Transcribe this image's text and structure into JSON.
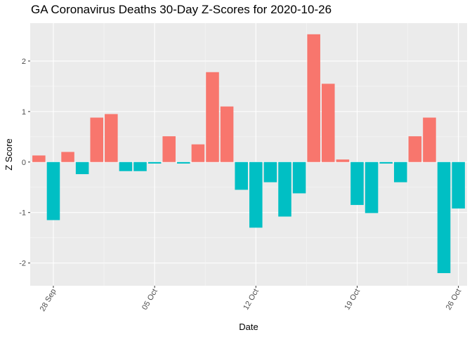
{
  "chart_data": {
    "type": "bar",
    "title": "GA Coronavirus Deaths 30-Day Z-Scores for 2020-10-26",
    "xlabel": "Date",
    "ylabel": "Z Score",
    "ylim": [
      -2.45,
      2.75
    ],
    "yticks": [
      -2,
      -1,
      0,
      1,
      2
    ],
    "ytick_labels": [
      "-2",
      "-1",
      "0",
      "1",
      "2"
    ],
    "x_dates": [
      "2020-09-27",
      "2020-09-28",
      "2020-09-29",
      "2020-09-30",
      "2020-10-01",
      "2020-10-02",
      "2020-10-03",
      "2020-10-04",
      "2020-10-05",
      "2020-10-06",
      "2020-10-07",
      "2020-10-08",
      "2020-10-09",
      "2020-10-10",
      "2020-10-11",
      "2020-10-12",
      "2020-10-13",
      "2020-10-14",
      "2020-10-15",
      "2020-10-16",
      "2020-10-17",
      "2020-10-18",
      "2020-10-19",
      "2020-10-20",
      "2020-10-21",
      "2020-10-22",
      "2020-10-23",
      "2020-10-24",
      "2020-10-25",
      "2020-10-26"
    ],
    "values": [
      0.13,
      -1.15,
      0.2,
      -0.24,
      0.88,
      0.95,
      -0.18,
      -0.18,
      -0.03,
      0.51,
      -0.03,
      0.35,
      1.78,
      1.1,
      -0.55,
      -1.3,
      -0.4,
      -1.08,
      -0.62,
      2.53,
      1.55,
      0.05,
      -0.85,
      -1.01,
      -0.03,
      -0.4,
      0.51,
      0.88,
      -2.2,
      -0.92
    ],
    "xticks": [
      {
        "date": "2020-09-28",
        "label": "28 Sep"
      },
      {
        "date": "2020-10-05",
        "label": "05 Oct"
      },
      {
        "date": "2020-10-12",
        "label": "12 Oct"
      },
      {
        "date": "2020-10-19",
        "label": "19 Oct"
      },
      {
        "date": "2020-10-26",
        "label": "26 Oct"
      }
    ],
    "colors": {
      "positive": "#f8766d",
      "negative": "#00bfc4",
      "panel": "#ebebeb",
      "grid_major": "#ffffff",
      "grid_minor": "#f7f7f7",
      "tick": "#333333"
    },
    "legend": "none",
    "grid": true
  }
}
